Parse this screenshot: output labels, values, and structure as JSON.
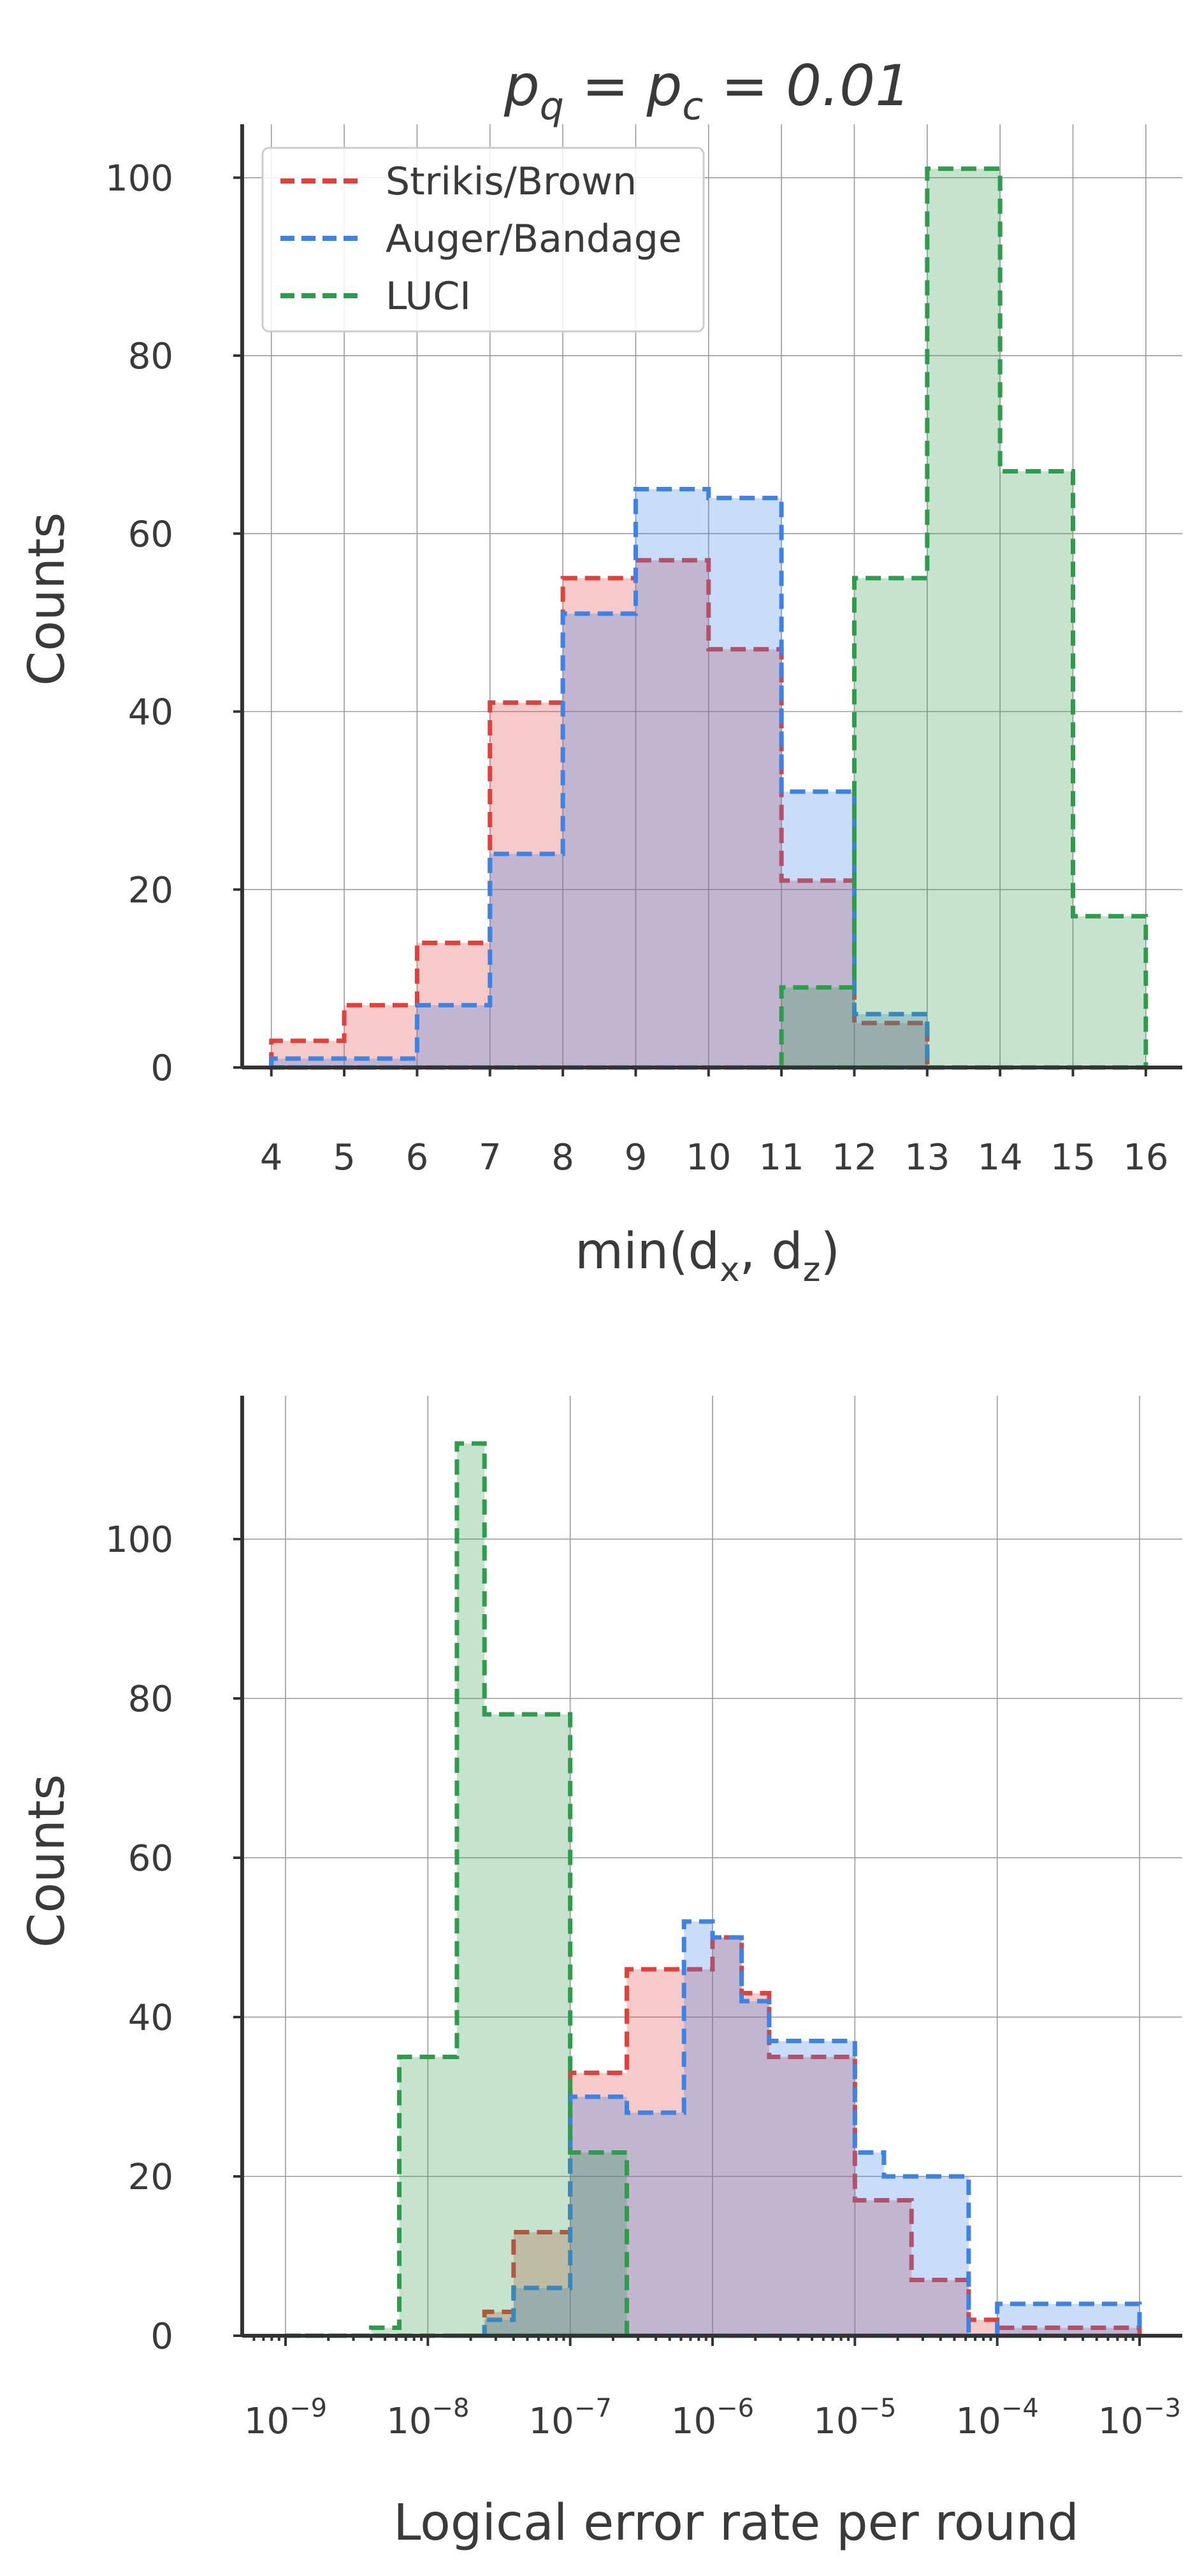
{
  "colors": {
    "Strikis/Brown": "#e0413b",
    "Auger/Bandage": "#3d82e5",
    "LUCI": "#2f9c4c"
  },
  "chart_data": [
    {
      "type": "histogram",
      "title": "p_q = p_c = 0.01",
      "xlabel": "min(d_x, d_z)",
      "ylabel": "Counts",
      "xlim": [
        3.6,
        16.5
      ],
      "ylim": [
        0,
        106
      ],
      "xticks": [
        "4",
        "5",
        "6",
        "7",
        "8",
        "9",
        "10",
        "11",
        "12",
        "13",
        "14",
        "15",
        "16"
      ],
      "yticks": [
        "0",
        "20",
        "40",
        "60",
        "80",
        "100"
      ],
      "grid": true,
      "legend": {
        "position": "top-left",
        "entries": [
          "Strikis/Brown",
          "Auger/Bandage",
          "LUCI"
        ]
      },
      "series": [
        {
          "name": "Strikis/Brown",
          "edges": [
            4,
            5,
            6,
            7,
            8,
            9,
            10,
            11,
            12,
            13
          ],
          "counts": [
            3,
            7,
            14,
            41,
            55,
            57,
            47,
            21,
            5
          ]
        },
        {
          "name": "Auger/Bandage",
          "edges": [
            4,
            5,
            6,
            7,
            8,
            9,
            10,
            11,
            12,
            13
          ],
          "counts": [
            1,
            1,
            7,
            24,
            51,
            65,
            64,
            31,
            6
          ]
        },
        {
          "name": "LUCI",
          "edges": [
            11,
            12,
            13,
            14,
            15,
            16
          ],
          "counts": [
            9,
            55,
            101,
            67,
            17
          ]
        }
      ]
    },
    {
      "type": "histogram",
      "xscale": "log",
      "xlabel": "Logical error rate per round",
      "ylabel": "Counts",
      "xlim": [
        1e-09,
        0.001
      ],
      "ylim": [
        0,
        118
      ],
      "xticks": [
        "1e-9",
        "1e-8",
        "1e-7",
        "1e-6",
        "1e-5",
        "1e-4",
        "1e-3"
      ],
      "yticks": [
        "0",
        "20",
        "40",
        "60",
        "80",
        "100"
      ],
      "grid": true,
      "series": [
        {
          "name": "Strikis/Brown",
          "edges": [
            1.6e-08,
            2.5e-08,
            4e-08,
            1e-07,
            1.6e-07,
            2.5e-07,
            6.3e-07,
            1e-06,
            1.6e-06,
            2.5e-06,
            6.3e-06,
            1e-05,
            1.6e-05,
            2.5e-05,
            6.3e-05,
            0.0001,
            0.00016,
            0.00025,
            0.00063,
            0.001
          ],
          "counts": [
            0,
            3,
            13,
            33,
            33,
            46,
            46,
            50,
            43,
            35,
            35,
            17,
            17,
            7,
            2,
            1,
            1,
            1,
            1
          ]
        },
        {
          "name": "Auger/Bandage",
          "edges": [
            1.6e-08,
            2.5e-08,
            4e-08,
            1e-07,
            1.6e-07,
            2.5e-07,
            6.3e-07,
            1e-06,
            1.6e-06,
            2.5e-06,
            6.3e-06,
            1e-05,
            1.6e-05,
            2.5e-05,
            6.3e-05,
            0.0001,
            0.00016,
            0.00025,
            0.00063,
            0.001
          ],
          "counts": [
            0,
            2,
            6,
            30,
            30,
            28,
            52,
            50,
            42,
            37,
            37,
            23,
            20,
            20,
            0,
            4,
            4,
            4,
            4
          ]
        },
        {
          "name": "LUCI",
          "edges": [
            1e-09,
            4e-09,
            6.3e-09,
            1.6e-08,
            2.5e-08,
            6.3e-08,
            1e-07,
            1.6e-07,
            2.5e-07
          ],
          "counts": [
            0,
            1,
            35,
            112,
            78,
            78,
            23,
            23
          ]
        }
      ]
    }
  ]
}
